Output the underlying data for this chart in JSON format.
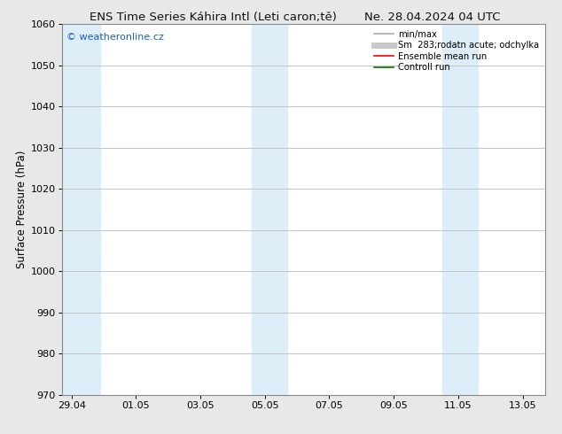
{
  "title": "ENS Time Series Káhira Intl (Leti caron;tě)",
  "title_right": "Ne. 28.04.2024 04 UTC",
  "ylabel": "Surface Pressure (hPa)",
  "ylim": [
    970,
    1060
  ],
  "yticks": [
    970,
    980,
    990,
    1000,
    1010,
    1020,
    1030,
    1040,
    1050,
    1060
  ],
  "x_tick_labels": [
    "29.04",
    "01.05",
    "03.05",
    "05.05",
    "07.05",
    "09.05",
    "11.05",
    "13.05"
  ],
  "x_tick_positions": [
    0,
    2,
    4,
    6,
    8,
    10,
    12,
    14
  ],
  "xlim": [
    -0.3,
    14.7
  ],
  "shaded_bands": [
    {
      "x_start": -0.3,
      "x_end": 0.9
    },
    {
      "x_start": 5.6,
      "x_end": 6.7
    },
    {
      "x_start": 11.5,
      "x_end": 12.6
    }
  ],
  "shaded_color": "#ddeef8",
  "watermark_text": "© weatheronline.cz",
  "watermark_color": "#1a5fc4",
  "legend_entries": [
    {
      "label": "min/max",
      "color": "#aaaaaa",
      "linewidth": 1.2,
      "style": "solid"
    },
    {
      "label": "Sm  283;rodatn acute; odchylka",
      "color": "#c8c8c8",
      "linewidth": 5,
      "style": "solid"
    },
    {
      "label": "Ensemble mean run",
      "color": "#ff0000",
      "linewidth": 1.2,
      "style": "solid"
    },
    {
      "label": "Controll run",
      "color": "#007700",
      "linewidth": 1.2,
      "style": "solid"
    }
  ],
  "bg_color": "#e8e8e8",
  "plot_bg_color": "#ffffff",
  "grid_color": "#bbbbbb",
  "title_fontsize": 9.5,
  "ylabel_fontsize": 8.5,
  "tick_fontsize": 8,
  "legend_fontsize": 7.2,
  "watermark_fontsize": 8
}
